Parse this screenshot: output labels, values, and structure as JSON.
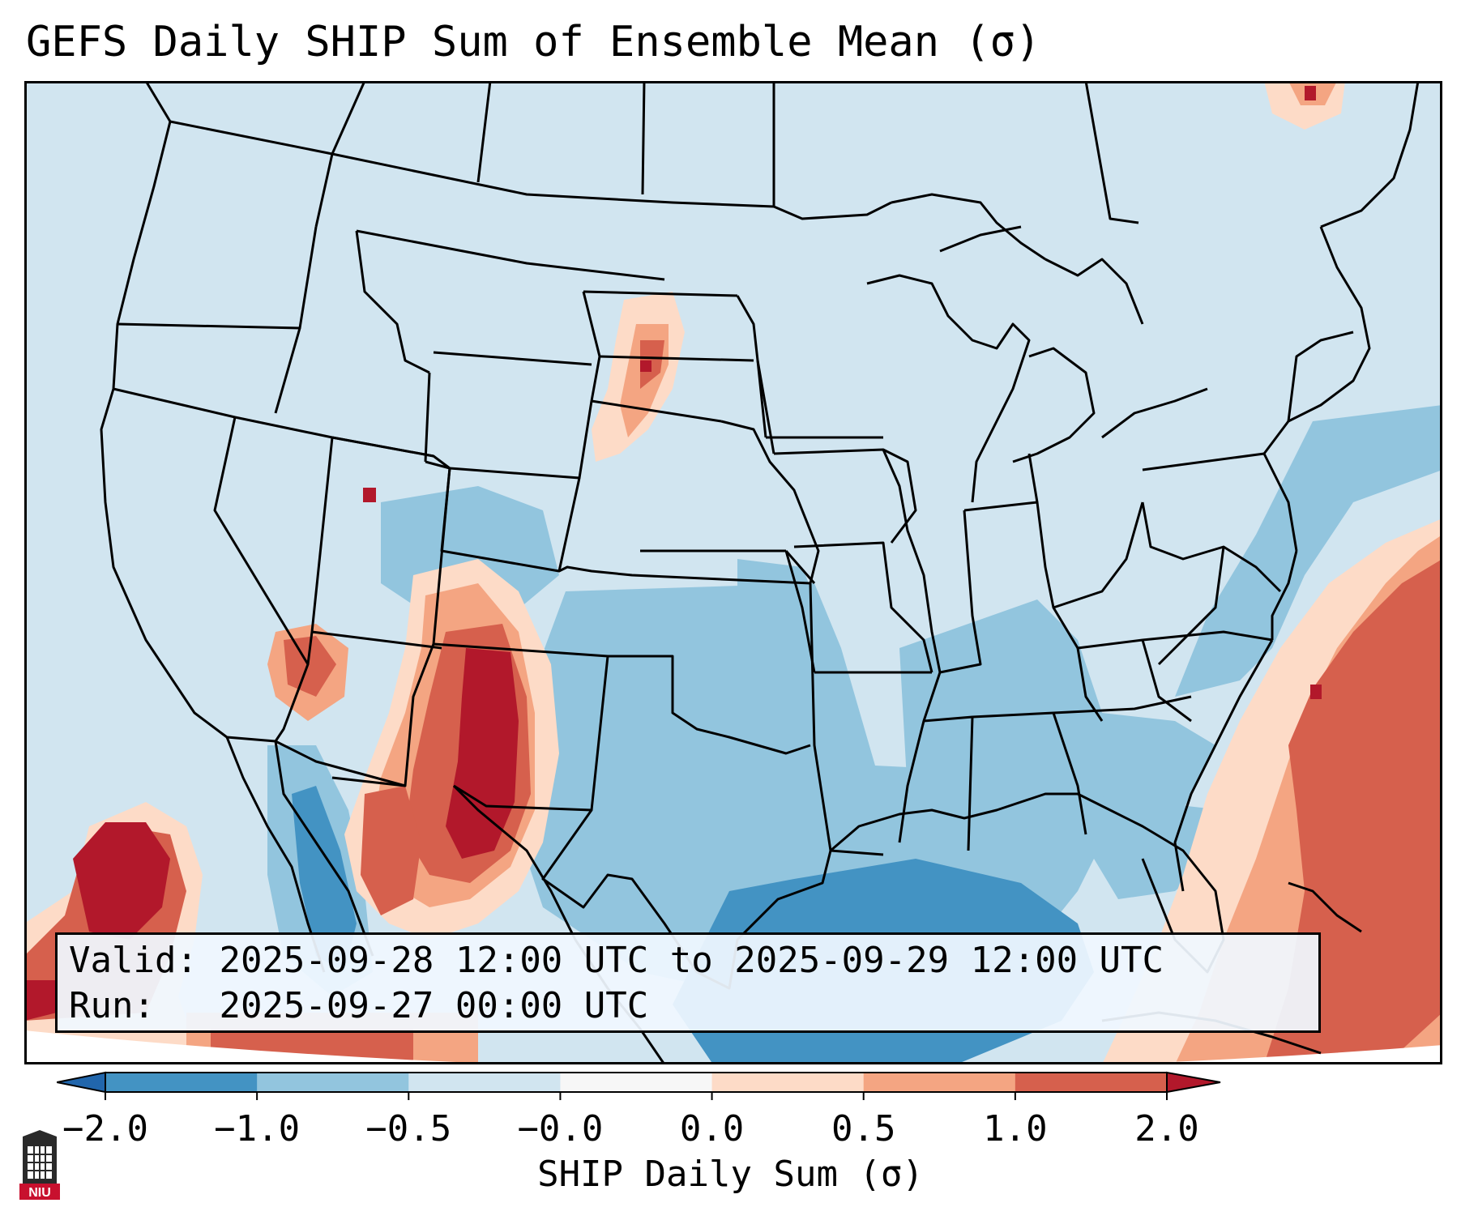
{
  "title": "GEFS Daily SHIP Sum of Ensemble Mean (σ)",
  "info": {
    "valid_label": "Valid:",
    "valid_value": "2025-09-28 12:00 UTC to 2025-09-29 12:00 UTC",
    "run_label": "Run:",
    "run_value": "2025-09-27 00:00 UTC"
  },
  "colorbar": {
    "label": "SHIP Daily Sum (σ)",
    "ticks": [
      "−2.0",
      "−1.0",
      "−0.5",
      "−0.0",
      "0.0",
      "0.5",
      "1.0",
      "2.0"
    ],
    "colors": [
      "#4393c3",
      "#92c5de",
      "#d1e5f0",
      "#f7f7f7",
      "#fddbc7",
      "#f4a582",
      "#d6604d",
      "#b2182b"
    ],
    "under_color": "#2166ac",
    "over_color": "#b2182b"
  },
  "map": {
    "region": "Contiguous United States",
    "background_color": "#d1e5f0",
    "outside_color": "#ffffff",
    "icons": [
      "niu-logo-icon"
    ]
  }
}
